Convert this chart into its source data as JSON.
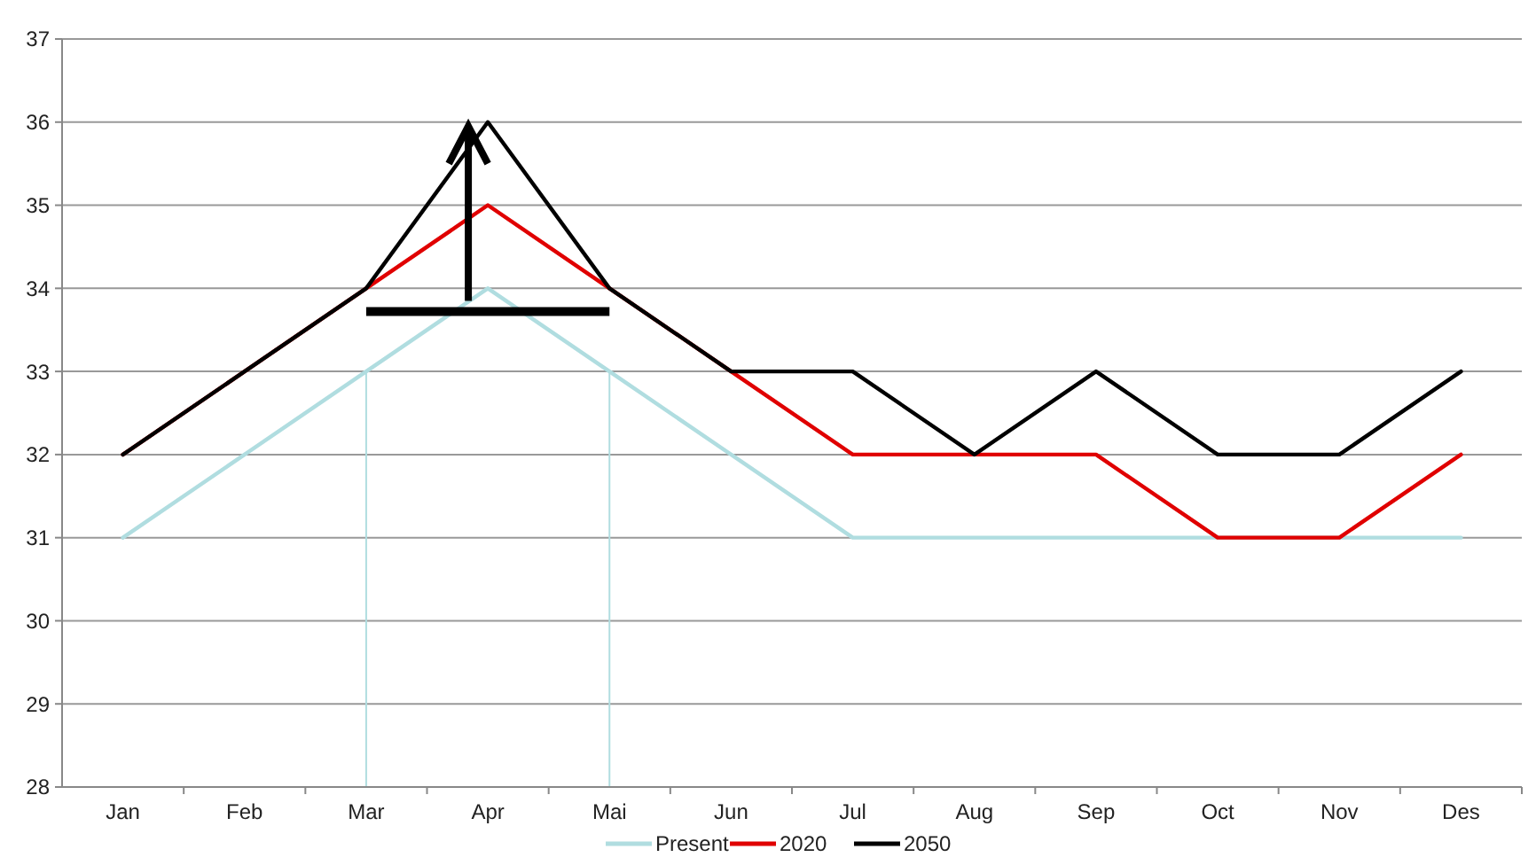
{
  "chart_data": {
    "type": "line",
    "categories": [
      "Jan",
      "Feb",
      "Mar",
      "Apr",
      "Mai",
      "Jun",
      "Jul",
      "Aug",
      "Sep",
      "Oct",
      "Nov",
      "Des"
    ],
    "series": [
      {
        "name": "Present",
        "color": "#b0dde0",
        "values": [
          31,
          32,
          33,
          34,
          33,
          32,
          31,
          31,
          31,
          31,
          31,
          31
        ]
      },
      {
        "name": "2020",
        "color": "#e00000",
        "values": [
          32,
          33,
          34,
          35,
          34,
          33,
          32,
          32,
          32,
          31,
          31,
          32
        ]
      },
      {
        "name": "2050",
        "color": "#000000",
        "values": [
          32,
          33,
          34,
          36,
          34,
          33,
          33,
          32,
          33,
          32,
          32,
          33
        ]
      }
    ],
    "ylim": [
      28,
      37
    ],
    "yticks": [
      28,
      29,
      30,
      31,
      32,
      33,
      34,
      35,
      36,
      37
    ],
    "grid": "y",
    "legend": "bottom",
    "marker": "none",
    "line_style": "solid",
    "ref_lines": [
      {
        "axis": "x",
        "value": "Mar",
        "color": "#b0dde0"
      },
      {
        "axis": "x",
        "value": "Mai",
        "color": "#b0dde0"
      }
    ]
  }
}
